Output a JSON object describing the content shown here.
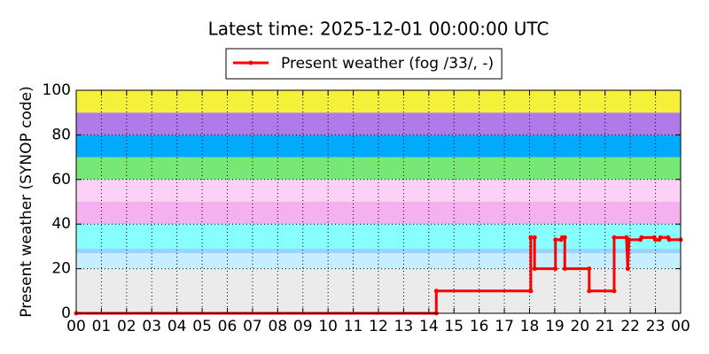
{
  "chart_data": {
    "type": "line",
    "title": "Latest time: 2025-12-01 00:00:00 UTC",
    "y_label": "Present weather (SYNOP code)",
    "x": [
      0,
      14.3,
      14.3,
      18.05,
      18.05,
      18.2,
      18.2,
      19.03,
      19.03,
      19.25,
      19.3,
      19.4,
      19.4,
      20.37,
      20.37,
      21.36,
      21.36,
      21.85,
      21.9,
      21.95,
      22.4,
      22.45,
      22.95,
      23.0,
      23.15,
      23.2,
      23.5,
      23.55,
      24
    ],
    "series": [
      {
        "name": "Present weather (fog /33/, -)",
        "color": "#ff0000",
        "values": [
          0,
          0,
          10,
          10,
          34,
          34,
          20,
          20,
          33,
          33,
          34,
          34,
          20,
          20,
          10,
          10,
          34,
          34,
          20,
          33,
          33,
          34,
          34,
          33,
          33,
          34,
          34,
          33,
          33
        ]
      }
    ],
    "xlim": [
      0,
      24
    ],
    "xticks": [
      {
        "value": 0,
        "label": "00"
      },
      {
        "value": 1,
        "label": "01"
      },
      {
        "value": 2,
        "label": "02"
      },
      {
        "value": 3,
        "label": "03"
      },
      {
        "value": 4,
        "label": "04"
      },
      {
        "value": 5,
        "label": "05"
      },
      {
        "value": 6,
        "label": "06"
      },
      {
        "value": 7,
        "label": "07"
      },
      {
        "value": 8,
        "label": "08"
      },
      {
        "value": 9,
        "label": "09"
      },
      {
        "value": 10,
        "label": "10"
      },
      {
        "value": 11,
        "label": "11"
      },
      {
        "value": 12,
        "label": "12"
      },
      {
        "value": 13,
        "label": "13"
      },
      {
        "value": 14,
        "label": "14"
      },
      {
        "value": 15,
        "label": "15"
      },
      {
        "value": 16,
        "label": "16"
      },
      {
        "value": 17,
        "label": "17"
      },
      {
        "value": 18,
        "label": "18"
      },
      {
        "value": 19,
        "label": "19"
      },
      {
        "value": 20,
        "label": "20"
      },
      {
        "value": 21,
        "label": "21"
      },
      {
        "value": 22,
        "label": "22"
      },
      {
        "value": 23,
        "label": "23"
      },
      {
        "value": 24,
        "label": "00"
      }
    ],
    "ylim": [
      0,
      100
    ],
    "yticks": [
      0,
      20,
      40,
      60,
      80,
      100
    ],
    "grid": true,
    "legend": "top",
    "bands": [
      {
        "from": 0,
        "to": 20,
        "color": "#ebebeb"
      },
      {
        "from": 20,
        "to": 27,
        "color": "#c6eeff"
      },
      {
        "from": 27,
        "to": 29,
        "color": "#99d4ff"
      },
      {
        "from": 29,
        "to": 40,
        "color": "#88ffff"
      },
      {
        "from": 40,
        "to": 50,
        "color": "#f5b0f0"
      },
      {
        "from": 50,
        "to": 60,
        "color": "#fdd0f8"
      },
      {
        "from": 60,
        "to": 70,
        "color": "#77e877"
      },
      {
        "from": 70,
        "to": 80,
        "color": "#00aaff"
      },
      {
        "from": 80,
        "to": 90,
        "color": "#b07ae8"
      },
      {
        "from": 90,
        "to": 100,
        "color": "#f5f03a"
      }
    ]
  }
}
